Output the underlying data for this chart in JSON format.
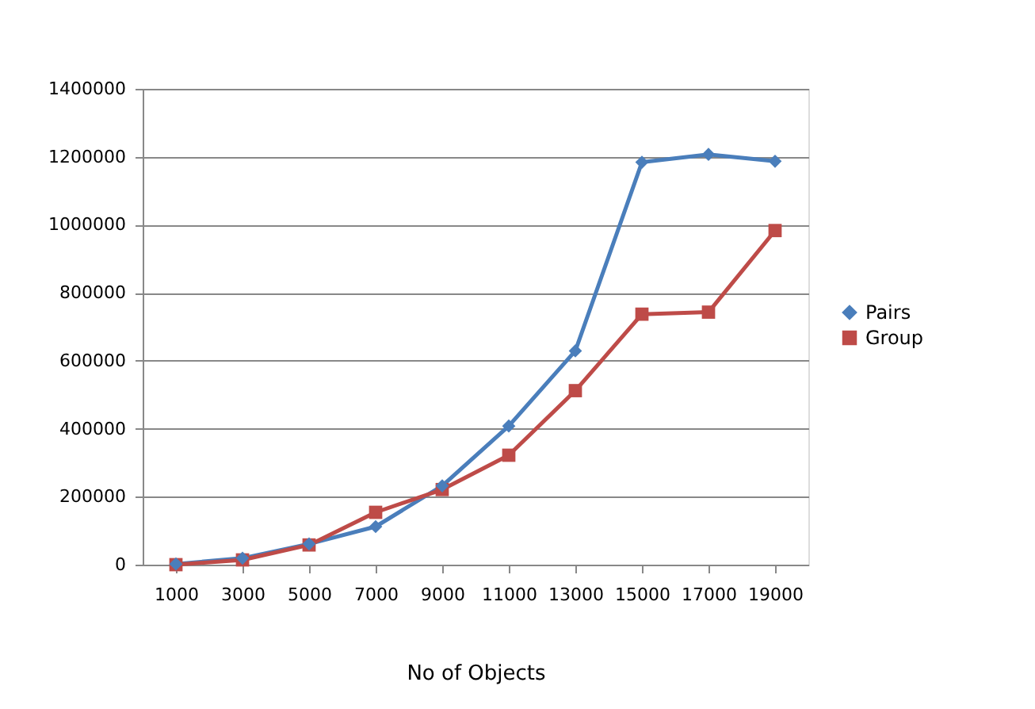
{
  "chart_data": {
    "type": "line",
    "xlabel": "No of Objects",
    "categories": [
      "1000",
      "3000",
      "5000",
      "7000",
      "9000",
      "11000",
      "13000",
      "15000",
      "17000",
      "19000"
    ],
    "series": [
      {
        "name": "Pairs",
        "color": "#4a7ebb",
        "marker": "diamond",
        "values": [
          2000,
          19000,
          61000,
          112000,
          232000,
          408000,
          629000,
          1184000,
          1207000,
          1187000
        ]
      },
      {
        "name": "Group",
        "color": "#be4b48",
        "marker": "square",
        "values": [
          0,
          14000,
          58000,
          154000,
          221000,
          322000,
          512000,
          737000,
          743000,
          983000
        ]
      }
    ],
    "ylim": [
      0,
      1400000
    ],
    "yticks": [
      0,
      200000,
      400000,
      600000,
      800000,
      1000000,
      1200000,
      1400000
    ],
    "grid": "y",
    "legend": "right",
    "line_style": "solid"
  }
}
